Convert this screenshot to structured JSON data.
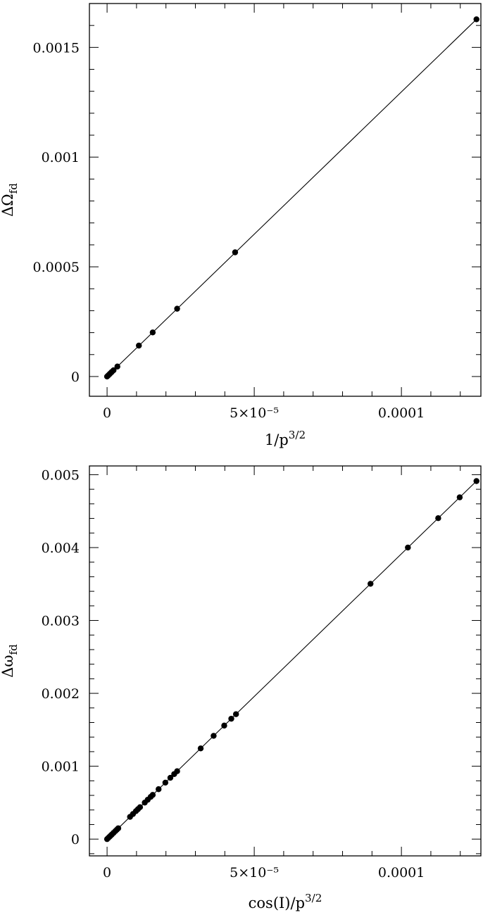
{
  "chart_data": [
    {
      "type": "scatter",
      "title": "",
      "xlabel": "1/p^{3/2}",
      "ylabel": "ΔΩ_fd",
      "xlim": [
        -6e-06,
        0.000127
      ],
      "ylim": [
        -9e-05,
        0.0017
      ],
      "xticks": [
        {
          "value": 0,
          "label": "0"
        },
        {
          "value": 5e-05,
          "label": "5×10⁻⁵"
        },
        {
          "value": 0.0001,
          "label": "0.0001"
        }
      ],
      "yticks": [
        {
          "value": 0,
          "label": "0"
        },
        {
          "value": 0.0005,
          "label": "0.0005"
        },
        {
          "value": 0.001,
          "label": "0.001"
        },
        {
          "value": 0.0015,
          "label": "0.0015"
        }
      ],
      "series": [
        {
          "x": [
            0.0,
            4e-07,
            8e-07,
            1.2e-06,
            1.6e-06,
            2.2e-06,
            3.5e-06,
            1.08e-05,
            1.55e-05,
            2.38e-05,
            4.35e-05,
            0.0001255
          ],
          "y": [
            0.0,
            5.2e-06,
            1.05e-05,
            1.57e-05,
            2.1e-05,
            2.85e-05,
            4.55e-05,
            0.000141,
            0.000201,
            0.000309,
            0.000566,
            0.001628
          ]
        }
      ],
      "fit_line": {
        "x": [
          0.0,
          0.0001255
        ],
        "y": [
          0.0,
          0.001628
        ]
      }
    },
    {
      "type": "scatter",
      "title": "",
      "xlabel": "cos(I)/p^{3/2}",
      "ylabel": "Δω_fd",
      "xlim": [
        -6e-06,
        0.000127
      ],
      "ylim": [
        -0.00023,
        0.00512
      ],
      "xticks": [
        {
          "value": 0,
          "label": "0"
        },
        {
          "value": 5e-05,
          "label": "5×10⁻⁵"
        },
        {
          "value": 0.0001,
          "label": "0.0001"
        }
      ],
      "yticks": [
        {
          "value": 0,
          "label": "0"
        },
        {
          "value": 0.001,
          "label": "0.001"
        },
        {
          "value": 0.002,
          "label": "0.002"
        },
        {
          "value": 0.003,
          "label": "0.003"
        },
        {
          "value": 0.004,
          "label": "0.004"
        },
        {
          "value": 0.005,
          "label": "0.005"
        }
      ],
      "series": [
        {
          "x": [
            0.0,
            4e-07,
            8e-07,
            1.2e-06,
            1.6e-06,
            2.2e-06,
            2.8e-06,
            3.3e-06,
            3.8e-06,
            7.8e-06,
            8.8e-06,
            9.8e-06,
            1.05e-05,
            1.12e-05,
            1.28e-05,
            1.38e-05,
            1.48e-05,
            1.55e-05,
            1.75e-05,
            1.98e-05,
            2.15e-05,
            2.28e-05,
            2.38e-05,
            3.18e-05,
            3.62e-05,
            3.98e-05,
            4.22e-05,
            4.38e-05,
            8.95e-05,
            0.0001022,
            0.0001125,
            0.0001198,
            0.0001255
          ],
          "y": [
            0.0,
            1.57e-05,
            3.13e-05,
            4.7e-05,
            6.26e-05,
            8.61e-05,
            0.0001096,
            0.0001292,
            0.0001488,
            0.0003053,
            0.0003445,
            0.0003836,
            0.000411,
            0.0004384,
            0.000501,
            0.0005402,
            0.0005793,
            0.0006067,
            0.000685,
            0.000775,
            0.0008415,
            0.0008925,
            0.0009316,
            0.0012447,
            0.0014169,
            0.0015578,
            0.0016517,
            0.0017144,
            0.0035032,
            0.0040003,
            0.0044034,
            0.0046892,
            0.0049123
          ]
        }
      ],
      "fit_line": {
        "x": [
          0.0,
          0.0001255
        ],
        "y": [
          0.0,
          0.0049123
        ]
      }
    }
  ]
}
